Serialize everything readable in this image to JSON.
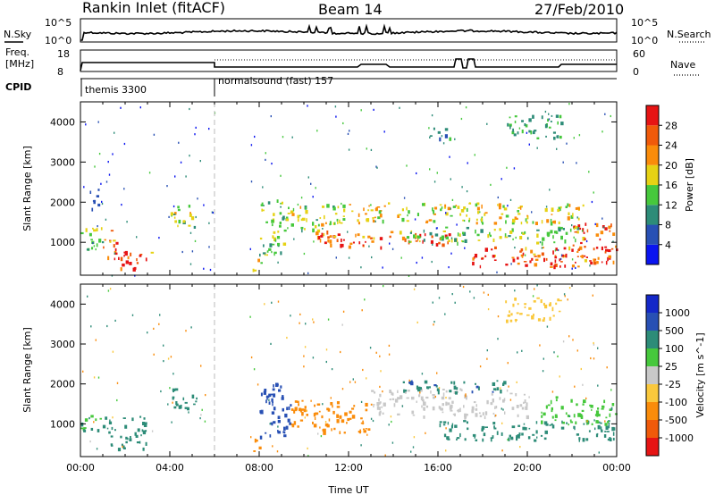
{
  "header": {
    "station": "Rankin Inlet (fitACF)",
    "beam": "Beam 14",
    "date": "27/Feb/2010"
  },
  "noise_panel": {
    "left_label": "N.Sky",
    "left_ticks": [
      "10^5",
      "10^0"
    ],
    "right_ticks": [
      "10^5",
      "10^0"
    ],
    "right_label": "N.Search",
    "right_legend_line": "dotted"
  },
  "freq_panel": {
    "left_label_lines": [
      "Freq.",
      "[MHz]"
    ],
    "left_ticks": [
      "18",
      "8"
    ],
    "right_ticks": [
      "60",
      "0"
    ],
    "right_label": "Nave",
    "right_legend_line": "dotted"
  },
  "cpid": {
    "label": "CPID",
    "segments": [
      {
        "name": "themis 3300",
        "start_hour": 0
      },
      {
        "name": "normalsound (fast) 157",
        "start_hour": 6
      }
    ]
  },
  "colors": {
    "power_scale": [
      "#0a14f0",
      "#2850b4",
      "#2d8c78",
      "#46c83c",
      "#e6d214",
      "#fa8c0a",
      "#f05a0a",
      "#e61414"
    ],
    "velocity_scale": [
      "#e61414",
      "#f05a0a",
      "#fa8c0a",
      "#fac83c",
      "#c8c8c8",
      "#46c83c",
      "#2d8c78",
      "#2850b4",
      "#1428c8"
    ]
  },
  "chart_data": [
    {
      "type": "heatmap",
      "name": "power",
      "ylabel": "Slant Range [km]",
      "xlim_hours": [
        0,
        24
      ],
      "ylim": [
        180,
        4500
      ],
      "y_ticks": [
        "1000",
        "2000",
        "3000",
        "4000"
      ],
      "colorbar": {
        "label": "Power [dB]",
        "range": [
          0,
          32
        ],
        "ticks": [
          "4",
          "8",
          "12",
          "16",
          "20",
          "24",
          "28"
        ]
      },
      "echo_regions": [
        {
          "t0": 0.0,
          "t1": 1.0,
          "r0": 800,
          "r1": 1400,
          "value": 14
        },
        {
          "t0": 1.0,
          "t1": 1.6,
          "r0": 600,
          "r1": 1400,
          "value": 27
        },
        {
          "t0": 1.5,
          "t1": 3.2,
          "r0": 300,
          "r1": 800,
          "value": 26
        },
        {
          "t0": 0.4,
          "t1": 0.8,
          "r0": 1800,
          "r1": 2500,
          "value": 6
        },
        {
          "t0": 4.0,
          "t1": 5.2,
          "r0": 1400,
          "r1": 2000,
          "value": 16
        },
        {
          "t0": 7.7,
          "t1": 8.1,
          "r0": 300,
          "r1": 700,
          "value": 20
        },
        {
          "t0": 8.0,
          "t1": 9.4,
          "r0": 700,
          "r1": 2100,
          "value": 14
        },
        {
          "t0": 9.4,
          "t1": 12.0,
          "r0": 1300,
          "r1": 2000,
          "value": 16
        },
        {
          "t0": 10.5,
          "t1": 16.5,
          "r0": 900,
          "r1": 1300,
          "value": 26
        },
        {
          "t0": 12.0,
          "t1": 22.5,
          "r0": 1500,
          "r1": 2000,
          "value": 18
        },
        {
          "t0": 14.0,
          "t1": 22.5,
          "r0": 1000,
          "r1": 1400,
          "value": 14
        },
        {
          "t0": 17.5,
          "t1": 23.0,
          "r0": 400,
          "r1": 900,
          "value": 27
        },
        {
          "t0": 22.0,
          "t1": 24.0,
          "r0": 500,
          "r1": 1500,
          "value": 27
        },
        {
          "t0": 19.0,
          "t1": 21.5,
          "r0": 3600,
          "r1": 4200,
          "value": 12
        },
        {
          "t0": 15.5,
          "t1": 16.5,
          "r0": 3600,
          "r1": 3900,
          "value": 10
        }
      ]
    },
    {
      "type": "heatmap",
      "name": "velocity",
      "ylabel": "Slant Range [km]",
      "xlabel": "Time UT",
      "xlim_hours": [
        0,
        24
      ],
      "ylim": [
        180,
        4500
      ],
      "x_ticks": [
        "00:00",
        "04:00",
        "08:00",
        "12:00",
        "16:00",
        "20:00",
        "00:00"
      ],
      "y_ticks": [
        "1000",
        "2000",
        "3000",
        "4000"
      ],
      "colorbar": {
        "label": "Velocity [m s^-1]",
        "ticks": [
          "1000",
          "500",
          "100",
          "25",
          "-25",
          "-100",
          "-500",
          "-1000"
        ]
      },
      "echo_regions": [
        {
          "t0": 0.0,
          "t1": 1.0,
          "r0": 800,
          "r1": 1300,
          "value": 100
        },
        {
          "t0": 1.0,
          "t1": 3.0,
          "r0": 400,
          "r1": 1200,
          "value": 150
        },
        {
          "t0": 4.0,
          "t1": 5.2,
          "r0": 1400,
          "r1": 2000,
          "value": 300
        },
        {
          "t0": 7.7,
          "t1": 8.1,
          "r0": 300,
          "r1": 700,
          "value": -200
        },
        {
          "t0": 8.0,
          "t1": 9.4,
          "r0": 700,
          "r1": 2100,
          "value": 700
        },
        {
          "t0": 9.4,
          "t1": 13.0,
          "r0": 800,
          "r1": 1600,
          "value": -300
        },
        {
          "t0": 13.0,
          "t1": 20.0,
          "r0": 1200,
          "r1": 1900,
          "value": 0
        },
        {
          "t0": 14.0,
          "t1": 19.0,
          "r0": 1800,
          "r1": 2100,
          "value": 400
        },
        {
          "t0": 16.0,
          "t1": 24.0,
          "r0": 600,
          "r1": 1100,
          "value": 150
        },
        {
          "t0": 20.5,
          "t1": 24.0,
          "r0": 1000,
          "r1": 1700,
          "value": 80
        },
        {
          "t0": 19.0,
          "t1": 21.5,
          "r0": 3600,
          "r1": 4200,
          "value": -60
        }
      ]
    }
  ]
}
